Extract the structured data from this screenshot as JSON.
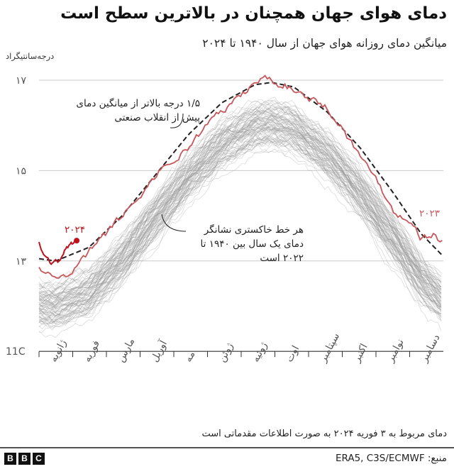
{
  "title": "دمای هوای جهان همچنان در بالاترین سطح است",
  "subtitle": "میانگین دمای روزانه هوای جهان از سال ۱۹۴۰ تا ۲۰۲۴",
  "footnote": "دمای مربوط به ۳ فوریه ۲۰۲۴ به صورت اطلاعات مقدماتی است",
  "source": "منبع: ERA5, C3S/ECMWF",
  "logo": [
    "B",
    "B",
    "C"
  ],
  "colors": {
    "red": "#c8575b",
    "red2024": "#c0121a",
    "gray": "#999999",
    "dashed": "#222222"
  },
  "chart_data": {
    "type": "line",
    "ylabel": "درجه‌سانتیگراد",
    "ylim": [
      11,
      17.4
    ],
    "yticks": [
      {
        "v": 17,
        "label": "۱۷"
      },
      {
        "v": 15,
        "label": "۱۵"
      },
      {
        "v": 13,
        "label": "۱۳"
      },
      {
        "v": 11,
        "label": "11C"
      }
    ],
    "months": [
      "ژانویه",
      "فوریه",
      "مارس",
      "آوریل",
      "مه",
      "ژوئن",
      "ژوئیه",
      "اوت",
      "سپتامبر",
      "اکتبر",
      "نوامبر",
      "دسامبر"
    ],
    "annotations": {
      "dashed": [
        "۱/۵ درجه بالاتر از میانگین دمای",
        "پیش از انقلاب صنعتی"
      ],
      "gray": [
        "هر خط خاکستری نشانگر",
        "دمای یک سال بین ۱۹۴۰ تا",
        "۲۰۲۲ است"
      ],
      "label2023": "۲۰۲۳",
      "label2024": "۲۰۲۴"
    },
    "background_years": {
      "from": 1940,
      "to": 2022,
      "note": "gray lines, one per year"
    },
    "series": [
      {
        "name": "pre-industrial +1.5°C",
        "style": "dashed",
        "points": [
          [
            0,
            13.05
          ],
          [
            15,
            13.0
          ],
          [
            45,
            13.3
          ],
          [
            75,
            14.0
          ],
          [
            105,
            14.9
          ],
          [
            135,
            15.8
          ],
          [
            165,
            16.5
          ],
          [
            195,
            16.9
          ],
          [
            210,
            16.95
          ],
          [
            230,
            16.85
          ],
          [
            260,
            16.3
          ],
          [
            290,
            15.5
          ],
          [
            320,
            14.5
          ],
          [
            345,
            13.6
          ],
          [
            365,
            13.1
          ]
        ]
      },
      {
        "name": "2023",
        "points": [
          [
            0,
            12.9
          ],
          [
            15,
            12.6
          ],
          [
            30,
            12.7
          ],
          [
            45,
            13.2
          ],
          [
            60,
            13.6
          ],
          [
            75,
            14.0
          ],
          [
            90,
            14.4
          ],
          [
            105,
            14.9
          ],
          [
            120,
            15.2
          ],
          [
            135,
            15.5
          ],
          [
            150,
            16.0
          ],
          [
            165,
            16.3
          ],
          [
            180,
            16.6
          ],
          [
            195,
            16.95
          ],
          [
            205,
            17.05
          ],
          [
            215,
            16.95
          ],
          [
            230,
            16.8
          ],
          [
            245,
            16.6
          ],
          [
            260,
            16.4
          ],
          [
            275,
            15.9
          ],
          [
            290,
            15.3
          ],
          [
            305,
            14.8
          ],
          [
            320,
            14.1
          ],
          [
            335,
            13.9
          ],
          [
            345,
            13.5
          ],
          [
            355,
            13.6
          ],
          [
            365,
            13.4
          ]
        ]
      },
      {
        "name": "2024",
        "points": [
          [
            0,
            13.4
          ],
          [
            5,
            13.1
          ],
          [
            12,
            12.95
          ],
          [
            18,
            13.0
          ],
          [
            25,
            13.3
          ],
          [
            34,
            13.45
          ]
        ]
      }
    ]
  }
}
